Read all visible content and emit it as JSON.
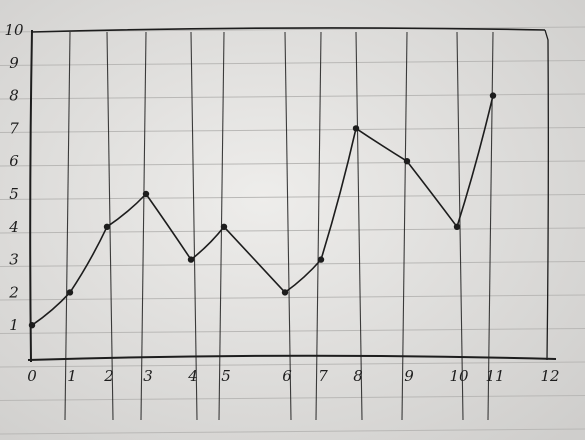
{
  "chart_data": {
    "type": "line",
    "x": [
      0,
      1,
      2,
      3,
      4,
      5,
      6,
      7,
      8,
      9,
      10,
      11
    ],
    "values": [
      1,
      2,
      4,
      5,
      3,
      4,
      2,
      3,
      7,
      6,
      4,
      8
    ],
    "x_tick_labels": [
      "0",
      "1",
      "2",
      "3",
      "4",
      "5",
      "6",
      "7",
      "8",
      "9",
      "10",
      "11",
      "12"
    ],
    "y_tick_labels": [
      "1",
      "2",
      "3",
      "4",
      "5",
      "6",
      "7",
      "8",
      "9",
      "10"
    ],
    "xlim": [
      0,
      12
    ],
    "ylim": [
      0,
      10
    ],
    "title": "",
    "xlabel": "",
    "ylabel": "",
    "grid": true,
    "style": "hand-drawn on lined notebook paper",
    "colors": {
      "ink": "#1d1d1d",
      "paper": "#e6e5e3",
      "ruled_line": "#b9b8b6"
    }
  }
}
